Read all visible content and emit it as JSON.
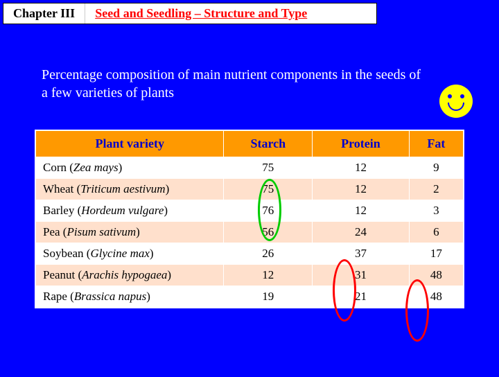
{
  "header": {
    "chapter_label": "Chapter III",
    "chapter_title": "Seed and Seedling – Structure and Type"
  },
  "subtitle": "Percentage composition of main nutrient components in the seeds of a few varieties of plants",
  "table": {
    "columns": [
      "Plant variety",
      "Starch",
      "Protein",
      "Fat"
    ],
    "rows": [
      {
        "common": "Corn",
        "sci": "Zea mays",
        "starch": "75",
        "protein": "12",
        "fat": "9"
      },
      {
        "common": "Wheat",
        "sci": "Triticum aestivum",
        "starch": "75",
        "protein": "12",
        "fat": "2"
      },
      {
        "common": "Barley",
        "sci": "Hordeum vulgare",
        "starch": "76",
        "protein": "12",
        "fat": "3"
      },
      {
        "common": "Pea",
        "sci": "Pisum sativum",
        "starch": "56",
        "protein": "24",
        "fat": "6"
      },
      {
        "common": "Soybean",
        "sci": "Glycine max",
        "starch": "26",
        "protein": "37",
        "fat": "17"
      },
      {
        "common": "Peanut",
        "sci": "Arachis hypogaea",
        "starch": "12",
        "protein": "31",
        "fat": "48"
      },
      {
        "common": "Rape",
        "sci": "Brassica napus",
        "starch": "19",
        "protein": "21",
        "fat": "48"
      }
    ]
  },
  "highlights": {
    "green_ellipse_col": "Starch",
    "red_ellipse1_col": "Protein",
    "red_ellipse2_col": "Fat",
    "colors": {
      "green": "#00cc00",
      "red": "#ff0000"
    }
  },
  "colors": {
    "page_bg": "#0000ff",
    "header_bg": "#ffffff",
    "title_text": "#ff0000",
    "subtitle_text": "#ffffff",
    "th_bg": "#ff9900",
    "th_text": "#0000cc",
    "row_alt_bg": "#ffe0cc",
    "smiley_fill": "#ffff00"
  }
}
